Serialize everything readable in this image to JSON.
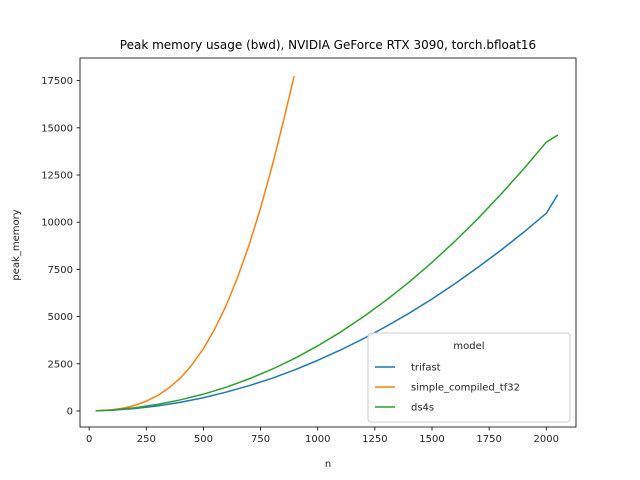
{
  "chart_data": {
    "type": "line",
    "title": "Peak memory usage (bwd), NVIDIA GeForce RTX 3090, torch.bfloat16",
    "xlabel": "n",
    "ylabel": "peak_memory",
    "xlim": [
      -40,
      2130
    ],
    "ylim": [
      -850,
      18700
    ],
    "xticks": [
      0,
      250,
      500,
      750,
      1000,
      1250,
      1500,
      1750,
      2000
    ],
    "yticks": [
      0,
      2500,
      5000,
      7500,
      10000,
      12500,
      15000,
      17500
    ],
    "grid": false,
    "legend": {
      "title": "model",
      "placement": "lower-right"
    },
    "series": [
      {
        "name": "trifast",
        "color": "#1f77b4",
        "x": [
          32,
          100,
          200,
          300,
          400,
          500,
          600,
          700,
          800,
          900,
          1000,
          1100,
          1200,
          1300,
          1400,
          1500,
          1600,
          1700,
          1800,
          1900,
          2000,
          2048
        ],
        "y": [
          10,
          40,
          130,
          270,
          460,
          700,
          1000,
          1340,
          1730,
          2180,
          2680,
          3230,
          3830,
          4480,
          5180,
          5930,
          6740,
          7600,
          8500,
          9460,
          10470,
          11420
        ]
      },
      {
        "name": "simple_compiled_tf32",
        "color": "#ff7f0e",
        "x": [
          32,
          100,
          150,
          200,
          250,
          300,
          350,
          400,
          450,
          500,
          550,
          600,
          650,
          700,
          750,
          800,
          850,
          896
        ],
        "y": [
          10,
          60,
          150,
          300,
          520,
          820,
          1230,
          1750,
          2450,
          3300,
          4350,
          5600,
          7100,
          8800,
          10750,
          12950,
          15350,
          17700
        ]
      },
      {
        "name": "ds4s",
        "color": "#2ca02c",
        "x": [
          32,
          100,
          200,
          300,
          400,
          500,
          600,
          700,
          800,
          900,
          1000,
          1100,
          1200,
          1300,
          1400,
          1500,
          1600,
          1700,
          1800,
          1900,
          2000,
          2048
        ],
        "y": [
          10,
          50,
          170,
          350,
          590,
          890,
          1260,
          1700,
          2210,
          2790,
          3450,
          4180,
          4990,
          5870,
          6830,
          7870,
          8990,
          10180,
          11460,
          12810,
          14240,
          14600
        ]
      }
    ]
  }
}
